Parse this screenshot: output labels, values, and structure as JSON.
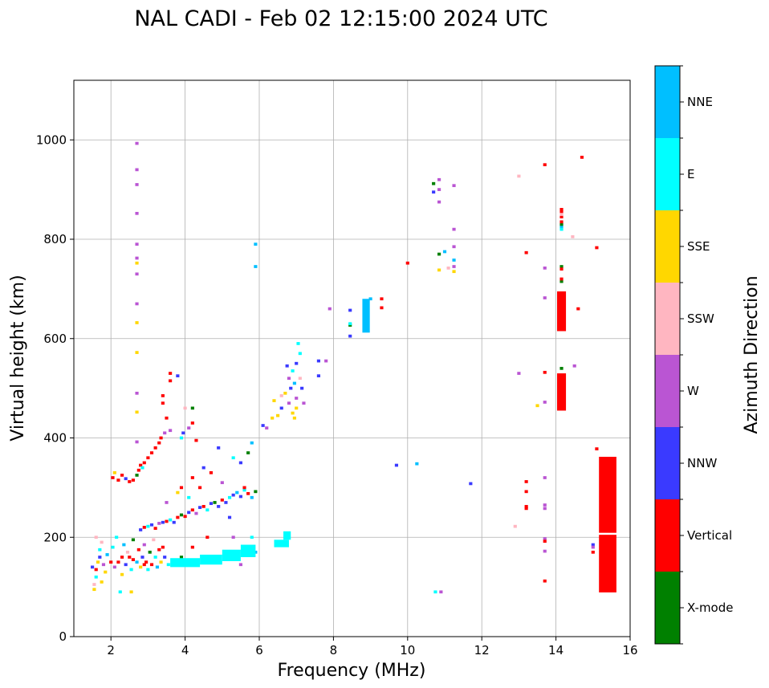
{
  "chart_data": {
    "type": "heatmap",
    "title": "NAL CADI - Feb 02 12:15:00 2024 UTC",
    "xlabel": "Frequency (MHz)",
    "ylabel": "Virtual height (km)",
    "xlim": [
      1,
      16
    ],
    "ylim": [
      0,
      1120
    ],
    "xticks": [
      2,
      4,
      6,
      8,
      10,
      12,
      14,
      16
    ],
    "yticks": [
      0,
      200,
      400,
      600,
      800,
      1000
    ],
    "grid": true,
    "colorbar": {
      "label": "Azimuth Direction",
      "categories": [
        "X-mode",
        "Vertical",
        "NNW",
        "W",
        "SSW",
        "SSE",
        "E",
        "NNE"
      ],
      "colors": [
        "#008000",
        "#ff0000",
        "#3a3aff",
        "#ba55d3",
        "#ffb6c1",
        "#ffd700",
        "#00ffff",
        "#00bfff"
      ]
    },
    "cell_default": {
      "freq_width_mhz": 0.09,
      "height_km": 6
    },
    "cells_note": "[frequency MHz, virtual height km, direction index]",
    "cells": [
      [
        1.55,
        95,
        5
      ],
      [
        1.55,
        105,
        4
      ],
      [
        1.6,
        120,
        6
      ],
      [
        1.6,
        135,
        1
      ],
      [
        1.65,
        150,
        5
      ],
      [
        1.7,
        160,
        2
      ],
      [
        1.7,
        175,
        6
      ],
      [
        1.75,
        190,
        4
      ],
      [
        1.8,
        145,
        3
      ],
      [
        1.85,
        130,
        5
      ],
      [
        1.9,
        165,
        7
      ],
      [
        1.5,
        140,
        2
      ],
      [
        1.6,
        200,
        4
      ],
      [
        1.75,
        110,
        5
      ],
      [
        2.0,
        150,
        1
      ],
      [
        2.05,
        180,
        6
      ],
      [
        2.1,
        140,
        3
      ],
      [
        2.15,
        200,
        6
      ],
      [
        2.25,
        90,
        6
      ],
      [
        2.3,
        125,
        5
      ],
      [
        2.3,
        160,
        1
      ],
      [
        2.35,
        185,
        7
      ],
      [
        2.4,
        145,
        2
      ],
      [
        2.45,
        170,
        4
      ],
      [
        2.55,
        90,
        5
      ],
      [
        2.55,
        135,
        6
      ],
      [
        2.6,
        155,
        1
      ],
      [
        2.6,
        195,
        0
      ],
      [
        2.7,
        150,
        7
      ],
      [
        2.75,
        175,
        1
      ],
      [
        2.8,
        140,
        5
      ],
      [
        2.85,
        160,
        2
      ],
      [
        2.9,
        185,
        3
      ],
      [
        2.95,
        150,
        1
      ],
      [
        3.0,
        135,
        6
      ],
      [
        3.05,
        170,
        0
      ],
      [
        3.1,
        145,
        1
      ],
      [
        3.15,
        195,
        4
      ],
      [
        3.2,
        160,
        6
      ],
      [
        3.25,
        140,
        7
      ],
      [
        3.3,
        175,
        1
      ],
      [
        3.35,
        150,
        5
      ],
      [
        3.45,
        160,
        2
      ],
      [
        3.55,
        145,
        6
      ],
      [
        2.2,
        150,
        1
      ],
      [
        2.5,
        160,
        1
      ],
      [
        2.9,
        145,
        1
      ],
      [
        3.4,
        180,
        1
      ],
      [
        2.8,
        215,
        2
      ],
      [
        2.9,
        220,
        1
      ],
      [
        3.0,
        222,
        6
      ],
      [
        3.1,
        225,
        2
      ],
      [
        3.2,
        218,
        1
      ],
      [
        3.3,
        228,
        3
      ],
      [
        3.4,
        230,
        2
      ],
      [
        3.5,
        232,
        1
      ],
      [
        3.6,
        235,
        6
      ],
      [
        3.7,
        230,
        2
      ],
      [
        3.8,
        240,
        1
      ],
      [
        3.9,
        245,
        0
      ],
      [
        4.0,
        242,
        1
      ],
      [
        4.1,
        250,
        2
      ],
      [
        4.2,
        255,
        1
      ],
      [
        4.3,
        248,
        3
      ],
      [
        4.4,
        260,
        2
      ],
      [
        4.5,
        262,
        1
      ],
      [
        4.6,
        255,
        6
      ],
      [
        4.7,
        268,
        2
      ],
      [
        4.8,
        270,
        0
      ],
      [
        4.9,
        262,
        2
      ],
      [
        5.0,
        275,
        1
      ],
      [
        5.1,
        270,
        2
      ],
      [
        5.2,
        280,
        6
      ],
      [
        5.3,
        285,
        2
      ],
      [
        5.4,
        290,
        7
      ],
      [
        5.5,
        282,
        2
      ],
      [
        5.6,
        295,
        6
      ],
      [
        5.7,
        288,
        1
      ],
      [
        5.8,
        280,
        7
      ],
      [
        5.9,
        292,
        0
      ],
      [
        4.2,
        320,
        1
      ],
      [
        4.5,
        340,
        2
      ],
      [
        4.7,
        330,
        1
      ],
      [
        5.0,
        310,
        3
      ],
      [
        5.3,
        360,
        6
      ],
      [
        5.5,
        350,
        2
      ],
      [
        5.7,
        370,
        0
      ],
      [
        5.8,
        390,
        7
      ],
      [
        4.9,
        380,
        2
      ],
      [
        5.6,
        300,
        1
      ],
      [
        4.4,
        300,
        1
      ],
      [
        3.8,
        290,
        5
      ],
      [
        3.5,
        270,
        3
      ],
      [
        3.9,
        300,
        1
      ],
      [
        4.1,
        280,
        6
      ],
      [
        5.2,
        240,
        2
      ],
      [
        5.8,
        200,
        6
      ],
      [
        5.9,
        170,
        7
      ],
      [
        5.5,
        145,
        3
      ],
      [
        5.3,
        200,
        3
      ],
      [
        4.6,
        200,
        1
      ],
      [
        4.2,
        180,
        1
      ],
      [
        3.9,
        160,
        0
      ],
      [
        4.5,
        155,
        2
      ],
      [
        2.05,
        320,
        1
      ],
      [
        2.1,
        330,
        5
      ],
      [
        2.2,
        315,
        1
      ],
      [
        2.3,
        325,
        1
      ],
      [
        2.4,
        318,
        2
      ],
      [
        2.5,
        312,
        1
      ],
      [
        2.6,
        315,
        1
      ],
      [
        2.7,
        325,
        0
      ],
      [
        2.75,
        335,
        1
      ],
      [
        2.8,
        345,
        1
      ],
      [
        2.85,
        340,
        6
      ],
      [
        2.9,
        350,
        1
      ],
      [
        3.0,
        360,
        1
      ],
      [
        3.1,
        370,
        1
      ],
      [
        3.2,
        380,
        1
      ],
      [
        3.3,
        390,
        1
      ],
      [
        3.35,
        400,
        1
      ],
      [
        3.45,
        410,
        3
      ],
      [
        3.5,
        440,
        1
      ],
      [
        3.4,
        470,
        1
      ],
      [
        3.4,
        485,
        1
      ],
      [
        3.6,
        515,
        1
      ],
      [
        3.6,
        530,
        1
      ],
      [
        3.6,
        415,
        3
      ],
      [
        3.9,
        400,
        6
      ],
      [
        3.95,
        410,
        2
      ],
      [
        4.0,
        460,
        4
      ],
      [
        4.2,
        460,
        0
      ],
      [
        4.2,
        430,
        1
      ],
      [
        4.3,
        395,
        1
      ],
      [
        4.1,
        420,
        3
      ],
      [
        3.8,
        525,
        2
      ],
      [
        2.7,
        993,
        3
      ],
      [
        2.7,
        940,
        3
      ],
      [
        2.7,
        910,
        3
      ],
      [
        2.7,
        852,
        3
      ],
      [
        2.7,
        790,
        3
      ],
      [
        2.7,
        762,
        3
      ],
      [
        2.7,
        752,
        5
      ],
      [
        2.7,
        730,
        3
      ],
      [
        2.7,
        670,
        3
      ],
      [
        2.7,
        632,
        5
      ],
      [
        2.7,
        572,
        5
      ],
      [
        2.7,
        490,
        3
      ],
      [
        2.7,
        452,
        5
      ],
      [
        2.7,
        392,
        3
      ],
      [
        6.1,
        425,
        2
      ],
      [
        6.2,
        420,
        3
      ],
      [
        6.35,
        440,
        5
      ],
      [
        6.5,
        445,
        5
      ],
      [
        6.4,
        475,
        5
      ],
      [
        6.6,
        460,
        2
      ],
      [
        6.7,
        490,
        5
      ],
      [
        6.8,
        470,
        3
      ],
      [
        6.9,
        450,
        5
      ],
      [
        6.95,
        440,
        5
      ],
      [
        7.0,
        480,
        3
      ],
      [
        6.85,
        500,
        2
      ],
      [
        6.8,
        520,
        3
      ],
      [
        6.9,
        535,
        6
      ],
      [
        7.0,
        550,
        2
      ],
      [
        7.1,
        570,
        6
      ],
      [
        7.05,
        590,
        6
      ],
      [
        6.75,
        545,
        2
      ],
      [
        7.15,
        500,
        2
      ],
      [
        7.2,
        470,
        3
      ],
      [
        7.0,
        460,
        5
      ],
      [
        6.95,
        510,
        7
      ],
      [
        7.1,
        520,
        4
      ],
      [
        6.6,
        485,
        4
      ],
      [
        7.6,
        555,
        2
      ],
      [
        7.6,
        525,
        2
      ],
      [
        7.8,
        555,
        3
      ],
      [
        5.9,
        790,
        7
      ],
      [
        5.9,
        745,
        7
      ],
      [
        7.9,
        660,
        3
      ],
      [
        8.85,
        620,
        2
      ],
      [
        8.85,
        640,
        3
      ],
      [
        8.85,
        660,
        6
      ],
      [
        9.0,
        680,
        7
      ],
      [
        9.3,
        680,
        1
      ],
      [
        9.3,
        662,
        1
      ],
      [
        8.45,
        657,
        2
      ],
      [
        8.45,
        627,
        0
      ],
      [
        8.45,
        630,
        6
      ],
      [
        8.45,
        605,
        2
      ],
      [
        9.7,
        345,
        2
      ],
      [
        10.25,
        348,
        7
      ],
      [
        11.7,
        308,
        2
      ],
      [
        10.0,
        752,
        1
      ],
      [
        10.7,
        912,
        0
      ],
      [
        10.7,
        895,
        2
      ],
      [
        10.85,
        920,
        3
      ],
      [
        10.85,
        900,
        3
      ],
      [
        10.85,
        875,
        3
      ],
      [
        10.85,
        770,
        0
      ],
      [
        10.85,
        738,
        5
      ],
      [
        11.0,
        775,
        7
      ],
      [
        11.25,
        908,
        3
      ],
      [
        11.25,
        820,
        3
      ],
      [
        11.25,
        785,
        3
      ],
      [
        11.25,
        758,
        7
      ],
      [
        11.25,
        745,
        3
      ],
      [
        11.25,
        735,
        5
      ],
      [
        11.1,
        742,
        4
      ],
      [
        10.75,
        90,
        6
      ],
      [
        10.9,
        90,
        3
      ],
      [
        13.0,
        927,
        4
      ],
      [
        13.0,
        530,
        3
      ],
      [
        12.9,
        222,
        4
      ],
      [
        13.2,
        773,
        1
      ],
      [
        13.2,
        312,
        1
      ],
      [
        13.2,
        292,
        1
      ],
      [
        13.2,
        258,
        1
      ],
      [
        13.2,
        262,
        1
      ],
      [
        13.5,
        465,
        5
      ],
      [
        13.7,
        950,
        1
      ],
      [
        13.7,
        742,
        3
      ],
      [
        13.7,
        682,
        3
      ],
      [
        13.7,
        532,
        1
      ],
      [
        13.7,
        472,
        3
      ],
      [
        13.7,
        320,
        3
      ],
      [
        13.7,
        265,
        3
      ],
      [
        13.7,
        258,
        3
      ],
      [
        13.7,
        197,
        3
      ],
      [
        13.7,
        192,
        1
      ],
      [
        13.7,
        172,
        3
      ],
      [
        13.7,
        112,
        1
      ],
      [
        14.15,
        460,
        0
      ],
      [
        14.15,
        480,
        0
      ],
      [
        14.15,
        500,
        0
      ],
      [
        14.15,
        540,
        0
      ],
      [
        14.15,
        715,
        0
      ],
      [
        14.15,
        745,
        0
      ],
      [
        14.15,
        740,
        1
      ],
      [
        14.15,
        720,
        1
      ],
      [
        14.15,
        690,
        0
      ],
      [
        14.15,
        825,
        7
      ],
      [
        14.15,
        830,
        0
      ],
      [
        14.15,
        835,
        1
      ],
      [
        14.15,
        845,
        1
      ],
      [
        14.15,
        855,
        1
      ],
      [
        14.15,
        860,
        1
      ],
      [
        14.15,
        850,
        4
      ],
      [
        14.15,
        820,
        6
      ],
      [
        14.45,
        805,
        4
      ],
      [
        14.15,
        510,
        3
      ],
      [
        14.15,
        525,
        1
      ],
      [
        14.7,
        965,
        1
      ],
      [
        14.6,
        660,
        1
      ],
      [
        14.5,
        545,
        3
      ],
      [
        15.1,
        783,
        1
      ],
      [
        15.1,
        378,
        1
      ],
      [
        15.0,
        185,
        2
      ],
      [
        15.0,
        180,
        3
      ],
      [
        15.0,
        170,
        1
      ]
    ],
    "blocks_note": "[freq start MHz, freq end MHz, height start km, height end km, direction index]",
    "blocks": [
      [
        3.6,
        4.4,
        140,
        158,
        6
      ],
      [
        4.4,
        5.0,
        145,
        165,
        6
      ],
      [
        5.0,
        5.5,
        152,
        175,
        6
      ],
      [
        5.5,
        5.9,
        160,
        185,
        6
      ],
      [
        6.4,
        6.8,
        180,
        195,
        6
      ],
      [
        6.65,
        6.85,
        195,
        212,
        6
      ],
      [
        8.78,
        8.98,
        612,
        680,
        7
      ],
      [
        14.03,
        14.27,
        615,
        695,
        1
      ],
      [
        14.03,
        14.27,
        455,
        530,
        1
      ],
      [
        15.16,
        15.63,
        89,
        205,
        1
      ],
      [
        15.16,
        15.63,
        209,
        362,
        1
      ]
    ]
  }
}
